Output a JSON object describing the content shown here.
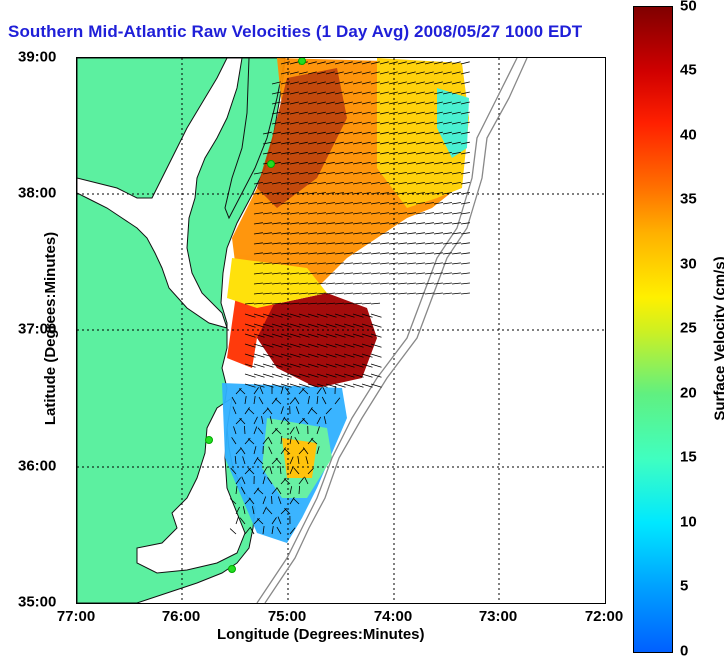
{
  "title": "Southern Mid-Atlantic Raw Velocities (1 Day Avg) 2008/05/27 1000 EDT",
  "xlabel": "Longitude (Degrees:Minutes)",
  "ylabel": "Latitude (Degrees:Minutes)",
  "xticks": [
    "77:00",
    "76:00",
    "75:00",
    "74:00",
    "73:00",
    "72:00"
  ],
  "yticks": [
    "39:00",
    "38:00",
    "37:00",
    "36:00",
    "35:00"
  ],
  "colorbar": {
    "label": "Surface Velocity (cm/s)",
    "ticks": [
      "50",
      "45",
      "40",
      "35",
      "30",
      "25",
      "20",
      "15",
      "10",
      "5",
      "0"
    ],
    "min": 0,
    "max": 50
  },
  "colors": {
    "title": "#1f1fd8",
    "land": "#5cf0a0",
    "coast": "#111111",
    "arrow": "#000000",
    "station": "#22dd22"
  }
}
